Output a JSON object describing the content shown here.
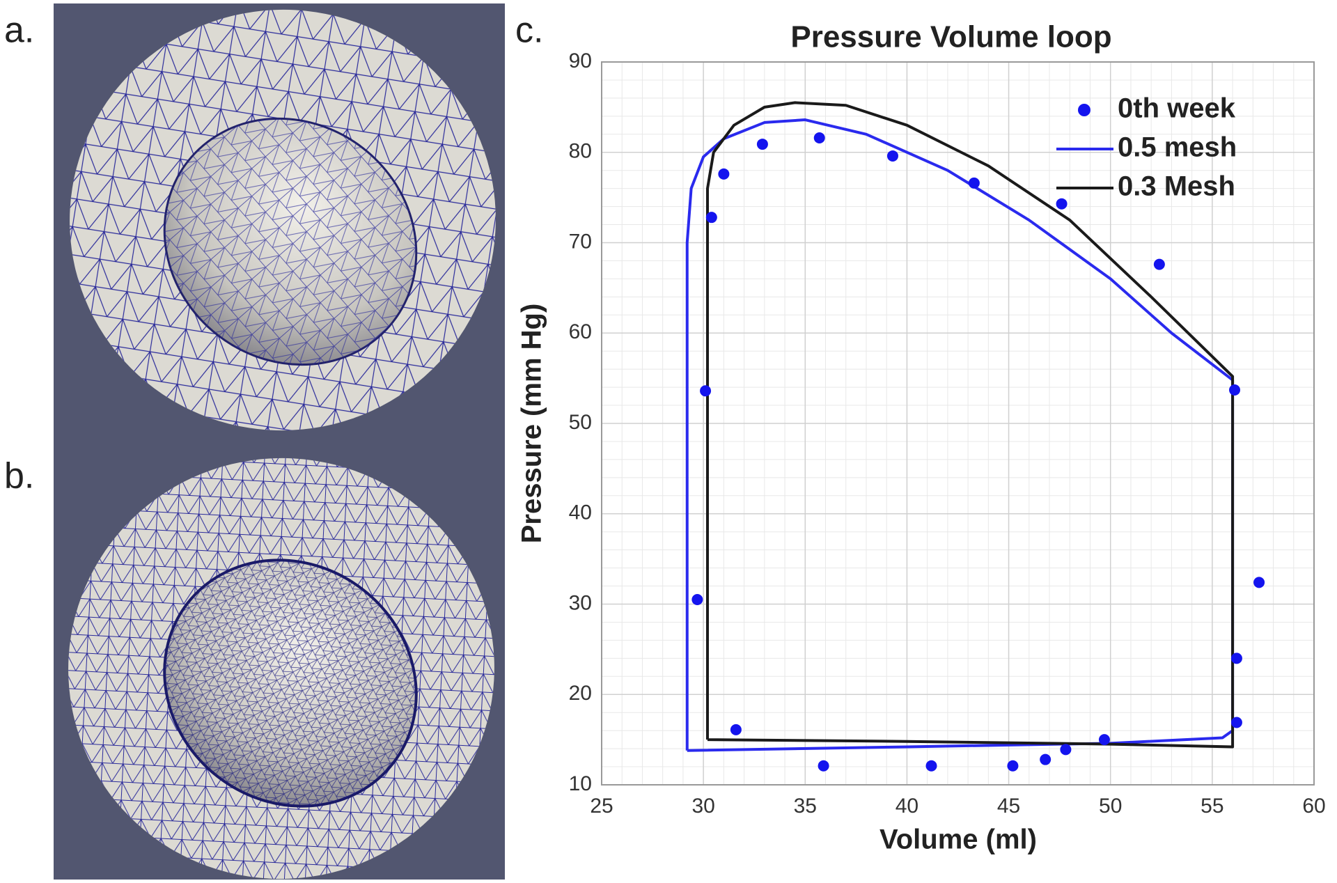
{
  "panel_labels": {
    "a": "a.",
    "b": "b.",
    "c": "c."
  },
  "chart_data": {
    "type": "scatter",
    "title": "Pressure Volume loop",
    "x_label": "Volume (ml)",
    "y_label": "Pressure (mm Hg)",
    "xlim": [
      25,
      60
    ],
    "xticks": [
      25,
      30,
      35,
      40,
      45,
      50,
      55,
      60
    ],
    "ylim": [
      10,
      90
    ],
    "yticks": [
      10,
      20,
      30,
      40,
      50,
      60,
      70,
      80,
      90
    ],
    "grid": true,
    "minor_grid": true,
    "legend": "upper right",
    "series": [
      {
        "name": "0th week",
        "color": "#1414ee",
        "mode": "markers",
        "x": [
          29.7,
          30.1,
          30.4,
          31.0,
          31.6,
          32.9,
          35.7,
          35.9,
          39.3,
          41.2,
          43.3,
          45.2,
          46.8,
          47.6,
          47.8,
          49.7,
          52.4,
          56.1,
          56.2,
          56.2,
          57.3
        ],
        "values": [
          30.5,
          53.6,
          72.8,
          77.6,
          16.1,
          80.9,
          81.6,
          12.1,
          79.6,
          12.1,
          76.6,
          12.1,
          12.8,
          74.3,
          13.9,
          15.0,
          67.6,
          53.7,
          16.9,
          24.0,
          32.4
        ]
      },
      {
        "name": "0.5 mesh",
        "color": "#2a2aee",
        "mode": "lines",
        "x": [
          29.2,
          29.2,
          29.4,
          30.0,
          31.0,
          33.0,
          35.0,
          38.0,
          42.0,
          46.0,
          50.0,
          53.0,
          56.0,
          56.0,
          55.5,
          50.0,
          40.0,
          29.2
        ],
        "values": [
          13.8,
          70.0,
          76.0,
          79.5,
          81.5,
          83.3,
          83.6,
          82.0,
          78.0,
          72.5,
          66.0,
          60.0,
          54.8,
          16.0,
          15.2,
          14.6,
          14.2,
          13.8
        ]
      },
      {
        "name": "0.3 Mesh",
        "color": "#1a1a1a",
        "mode": "lines",
        "x": [
          30.2,
          30.2,
          30.5,
          31.5,
          33.0,
          34.5,
          37.0,
          40.0,
          44.0,
          48.0,
          52.0,
          56.0,
          56.0,
          50.0,
          40.0,
          30.2
        ],
        "values": [
          15.0,
          76.0,
          80.0,
          83.0,
          85.0,
          85.5,
          85.2,
          83.0,
          78.5,
          72.5,
          64.0,
          55.2,
          14.2,
          14.5,
          14.8,
          15.0
        ]
      }
    ]
  }
}
